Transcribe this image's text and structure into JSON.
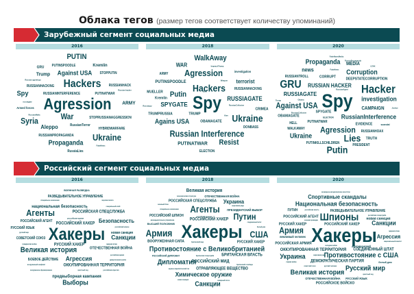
{
  "header": {
    "title": "Облака тегов",
    "subtitle": "(размер тегов соответствует количеству упоминаний)"
  },
  "colors": {
    "banner": "#0b4a52",
    "accent_red": "#d62b33",
    "year_bar": "#b5dde0",
    "text": "#0b4a53"
  },
  "sections": [
    {
      "title": "Зарубежный сегмент социальных медиа",
      "columns": [
        {
          "year": "2016",
          "words": [
            "PUTIN",
            "GRU",
            "PUTINSPOODLE",
            "Kremlin",
            "Trump",
            "Against USA",
            "STOPPUTIN",
            "Russian agent/spy",
            "RUSSIANHACKING",
            "Hackers",
            "RUSSIANHACK",
            "Russian hacker",
            "Spy",
            "RUSSIANINTERFERENCE",
            "PUTINATWAR",
            "russiagate",
            "Agression",
            "ARMY",
            "Armed forces",
            "RussianMafia",
            "War",
            "STOPRUSSIANAGGRESSION",
            "Syria",
            "Aleppo",
            "RussianTerror",
            "HYBRIDWARFARE",
            "RUSSIANPROPAGANDA",
            "Ukraine",
            "Propaganda",
            "FakeNews",
            "RussiaLies"
          ]
        },
        {
          "year": "2018",
          "words": [
            "WalkAway",
            "WAR",
            "ImpeachTrump",
            "ARMY",
            "Agression",
            "investigation",
            "PUTINSPOODLE",
            "Weapon",
            "terrorist",
            "Hackers",
            "RUSSIANHACKING",
            "MUELLER",
            "Putin",
            "GRU",
            "Kremlin",
            "Spy",
            "RUSSIAGATE",
            "Russiaspy",
            "SPYGATE",
            "RussianCollusion",
            "CRIMEA",
            "TRUMPRUSSIA",
            "TRUMP",
            "Kiev",
            "Ukraine",
            "Agains USA",
            "OBAMAGATE",
            "DONBASS",
            "Russian Interference",
            "PUTINATWAR",
            "Resist",
            "ELECTION"
          ]
        },
        {
          "year": "2020",
          "words": [
            "FakeNewsMedia",
            "RussiaPropaganda",
            "Propaganda",
            "MEDIA",
            "LEAK",
            "news",
            "FakeNews",
            "Corruption",
            "RUSSIANTROLL",
            "CORRUPT",
            "DEEPSTATECORRUPTION",
            "GRU",
            "RUSSIAN HACKER",
            "Hacker",
            "RussianAgent",
            "RUSSIAGATE",
            "Spy",
            "Trump",
            "Obama",
            "investigation",
            "Against USA",
            "CAMPAIGN",
            "Justice",
            "RussianCollusion",
            "SPYGATE",
            "OBAMAGATE",
            "ELECTION",
            "RussianInterference",
            "HELL",
            "PUTINATWAR",
            "EVIDENCE",
            "scandal",
            "WALKAWAY",
            "Agression",
            "RUSSIANHOAX",
            "Ukraine",
            "Lies",
            "TRUTH",
            "PUTINKILLSCHILDREN",
            "PRESIDENT",
            "Putin"
          ]
        }
      ]
    },
    {
      "title": "Российский сегмент социальных медиа",
      "columns": [
        {
          "year": "2016",
          "words": [
            "ВОЕННАЯ РАЗВЕДКА",
            "РАЗВЕДЫВАТЕЛЬНОЕ УПРАВЛЕНИЕ",
            "специальное назначение",
            "морская пехота",
            "национальная безопасность",
            "генеральный штаб",
            "Агенты",
            "РОССИЙСКАЯ СПЕЦСЛУЖБА",
            "российская армия",
            "РОССИЙСКИЙ АГЕНТ",
            "Безопасность",
            "РУССКИЙ ЯЗЫК",
            "РОССИЙСКИЙ ХАКЕР",
            "российский шпион",
            "русский мир",
            "Хакеры",
            "новая санкция",
            "СОВЕТСКИЙ СОЮЗ",
            "Санкции",
            "гражданская война",
            "РУССКИЙ ХАКЕР",
            "ядерная атака",
            "Великая история",
            "ОТЕЧЕСТВЕННАЯ ВОЙНА",
            "российская армия",
            "БОЕВОЕ ДЕЙСТВИЕ",
            "Агрессия",
            "диверсионная группа",
            "вооруженный конфликт",
            "ОККУПИРОВАННАЯ ТЕРРИТОРИЯ",
            "вооруженное формирование",
            "крестный ход",
            "российская агрессия",
            "предвыборная кампания",
            "Выборы"
          ]
        },
        {
          "year": "2018",
          "words": [
            "Великая история",
            "экономическая структура",
            "ОТЕЧЕСТВЕННАЯ ВОЙНА",
            "РОССИЙСКАЯ СПЕЦСЛУЖБА",
            "Украина",
            "военный блок",
            "верховная рада",
            "специальное назначение",
            "Агенты",
            "ПРЕЗИДЕНТСКИЙ ВЫБОР",
            "РОССИЙСКИЙ ШПИОН",
            "российская разведка",
            "Путин",
            "разведывательное управление",
            "ВЫСШИЙ ПОЛКОВНИК",
            "РОССИЙСКИЙ ХАКЕР",
            "соединенный штат",
            "белый дом",
            "Армия",
            "Хакеры",
            "США",
            "ВООРУЖЕННАЯ СИЛА",
            "британский мид",
            "РУССКИЙ ХАКЕР",
            "Противостояние с Великобританией",
            "РОССИЙСКИЙ ДИПЛОМАТ",
            "британская спецслужба",
            "БРИТАНСКАЯ ВЛАСТЬ",
            "Дипломатия",
            "РОССИЙСКИЙ МИД",
            "британский солсбери",
            "нервно-паралитический газ",
            "ОТРАВЛЯЮЩЕЕ ВЕЩЕСТВО",
            "Химическое оружие",
            "новая санкция",
            "северный поток",
            "Санкции"
          ]
        },
        {
          "year": "2020",
          "words": [
            "всемирное антидопинговое агентство",
            "Спортивные скандалы",
            "Национальная безопасность",
            "ПУТИН",
            "российская власть",
            "РАЗВЕДЫВАТЕЛЬНОЕ УПРАВЛЕНИЕ",
            "РОССИЙСКИЙ АГЕНТ",
            "Шпионы",
            "российская спецслужба",
            "военная разведка",
            "новая санкция",
            "РУССКИЙ ХАКЕР",
            "РОССИЙСКИЙ ХАКЕР",
            "Санкции",
            "Армия",
            "Хакеры",
            "ядерная атака",
            "вежливый человек",
            "Агрессия",
            "национальный комитет",
            "РОССИЙСКАЯ АРМИЯ",
            "холодная война",
            "американский",
            "ОККУПИРОВАННАЯ ТЕРРИТОРИЯ",
            "СОЕДИНЕННЫЙ ШТАТ",
            "Украина",
            "верховная рада",
            "Противостояние с США",
            "первая война",
            "ДЕМОКРАТИЧЕСКАЯ ПАРТИЯ",
            "белый дом",
            "советский союз",
            "русский человек",
            "Русский мир",
            "Великая история",
            "крестный ход",
            "ОТЕЧЕСТВЕННАЯ ВОЙНА",
            "РУССКИЙ ЯЗЫК",
            "РОССИЙСКОЕ ВОЙСКО"
          ]
        }
      ]
    }
  ]
}
